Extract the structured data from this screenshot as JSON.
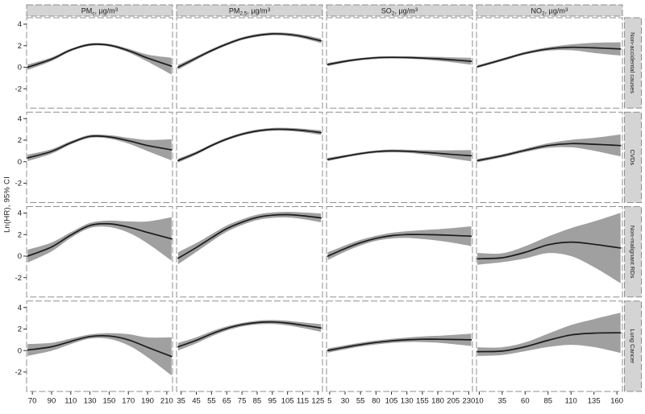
{
  "chart_data": {
    "type": "line",
    "title": "",
    "xlabel": "",
    "ylabel": "Ln(HR), 95% CI",
    "ylim": [
      -3.8,
      4.6
    ],
    "yticks": [
      -2,
      0,
      2,
      4
    ],
    "grid": false,
    "legend_position": "none",
    "colors": {
      "band": "#a0a0a0",
      "line": "#1a1a1a",
      "strip_bg": "#d4d4d4",
      "panel_border": "#8f8f8f",
      "tick_text": "#1a1a1a",
      "background": "#ffffff"
    },
    "columns": [
      {
        "header_text": "PMc, µg/m³",
        "header": {
          "pre": "PM",
          "sub": "c",
          "mid": ", µg/m",
          "sup": "3"
        },
        "xlim": [
          64,
          216
        ],
        "xticks": [
          70,
          90,
          110,
          130,
          150,
          170,
          190,
          210
        ]
      },
      {
        "header_text": "PM2.5, µg/m³",
        "header": {
          "pre": "PM",
          "sub": "2.5",
          "mid": ", µg/m",
          "sup": "3"
        },
        "xlim": [
          32,
          128
        ],
        "xticks": [
          35,
          45,
          55,
          65,
          75,
          85,
          95,
          105,
          115,
          125
        ]
      },
      {
        "header_text": "SO2, µg/m³",
        "header": {
          "pre": "SO",
          "sub": "2",
          "mid": ", µg/m",
          "sup": "3"
        },
        "xlim": [
          0,
          236
        ],
        "xticks": [
          5,
          30,
          55,
          80,
          105,
          130,
          155,
          180,
          205,
          230
        ]
      },
      {
        "header_text": "NO2, µg/m³",
        "header": {
          "pre": "NO",
          "sub": "2",
          "mid": ", µg/m",
          "sup": "3"
        },
        "xlim": [
          7,
          166
        ],
        "xticks": [
          10,
          35,
          60,
          85,
          110,
          135,
          160
        ]
      }
    ],
    "rows": [
      {
        "label": "Non-accidental causes"
      },
      {
        "label": "CVDs"
      },
      {
        "label": "Non-malignant RDs"
      },
      {
        "label": "Lung Cancer"
      }
    ],
    "panels": [
      [
        {
          "x": [
            65,
            90,
            110,
            130,
            150,
            170,
            190,
            215
          ],
          "y": [
            0.0,
            0.75,
            1.6,
            2.1,
            2.05,
            1.55,
            0.85,
            0.1
          ],
          "lo": [
            -0.25,
            0.58,
            1.48,
            1.98,
            1.93,
            1.38,
            0.52,
            -0.68
          ],
          "hi": [
            0.25,
            0.92,
            1.72,
            2.22,
            2.17,
            1.72,
            1.18,
            0.88
          ]
        },
        {
          "x": [
            33,
            45,
            55,
            65,
            75,
            85,
            95,
            105,
            115,
            127
          ],
          "y": [
            0.0,
            0.85,
            1.55,
            2.15,
            2.65,
            2.95,
            3.1,
            3.05,
            2.85,
            2.45
          ],
          "lo": [
            -0.22,
            0.69,
            1.41,
            2.02,
            2.52,
            2.82,
            2.97,
            2.91,
            2.69,
            2.24
          ],
          "hi": [
            0.22,
            1.01,
            1.69,
            2.28,
            2.78,
            3.08,
            3.23,
            3.19,
            3.01,
            2.66
          ]
        },
        {
          "x": [
            2,
            30,
            55,
            80,
            105,
            130,
            155,
            180,
            205,
            234
          ],
          "y": [
            0.25,
            0.55,
            0.75,
            0.88,
            0.92,
            0.9,
            0.85,
            0.78,
            0.68,
            0.55
          ],
          "lo": [
            0.1,
            0.43,
            0.64,
            0.77,
            0.81,
            0.79,
            0.72,
            0.6,
            0.45,
            0.23
          ],
          "hi": [
            0.4,
            0.67,
            0.86,
            0.99,
            1.03,
            1.01,
            0.98,
            0.96,
            0.91,
            0.87
          ]
        },
        {
          "x": [
            8,
            35,
            60,
            85,
            110,
            135,
            164
          ],
          "y": [
            0.05,
            0.7,
            1.3,
            1.7,
            1.85,
            1.8,
            1.7
          ],
          "lo": [
            -0.08,
            0.57,
            1.17,
            1.54,
            1.58,
            1.33,
            1.08
          ],
          "hi": [
            0.18,
            0.83,
            1.43,
            1.86,
            2.12,
            2.27,
            2.32
          ]
        }
      ],
      [
        {
          "x": [
            65,
            90,
            110,
            130,
            150,
            170,
            190,
            215
          ],
          "y": [
            0.35,
            0.95,
            1.75,
            2.35,
            2.3,
            1.95,
            1.5,
            1.1
          ],
          "lo": [
            0.05,
            0.74,
            1.6,
            2.21,
            2.14,
            1.68,
            0.98,
            0.12
          ],
          "hi": [
            0.65,
            1.16,
            1.9,
            2.49,
            2.46,
            2.22,
            2.02,
            2.08
          ]
        },
        {
          "x": [
            33,
            45,
            55,
            65,
            75,
            85,
            95,
            105,
            115,
            127
          ],
          "y": [
            0.1,
            0.8,
            1.5,
            2.1,
            2.55,
            2.85,
            3.0,
            3.0,
            2.9,
            2.7
          ],
          "lo": [
            -0.08,
            0.65,
            1.37,
            1.97,
            2.42,
            2.72,
            2.87,
            2.86,
            2.74,
            2.49
          ],
          "hi": [
            0.28,
            0.95,
            1.63,
            2.23,
            2.68,
            2.98,
            3.13,
            3.14,
            3.06,
            2.91
          ]
        },
        {
          "x": [
            2,
            30,
            55,
            80,
            105,
            130,
            155,
            180,
            205,
            234
          ],
          "y": [
            0.2,
            0.5,
            0.75,
            0.93,
            1.0,
            0.97,
            0.88,
            0.78,
            0.67,
            0.55
          ],
          "lo": [
            0.05,
            0.38,
            0.63,
            0.81,
            0.87,
            0.83,
            0.69,
            0.5,
            0.28,
            0.03
          ],
          "hi": [
            0.35,
            0.62,
            0.87,
            1.05,
            1.13,
            1.11,
            1.07,
            1.06,
            1.06,
            1.07
          ]
        },
        {
          "x": [
            8,
            35,
            60,
            85,
            110,
            135,
            164
          ],
          "y": [
            0.1,
            0.55,
            1.05,
            1.5,
            1.68,
            1.62,
            1.5
          ],
          "lo": [
            -0.05,
            0.41,
            0.89,
            1.29,
            1.33,
            1.02,
            0.48
          ],
          "hi": [
            0.25,
            0.69,
            1.21,
            1.71,
            2.03,
            2.22,
            2.52
          ]
        }
      ],
      [
        {
          "x": [
            65,
            90,
            110,
            130,
            150,
            170,
            190,
            215
          ],
          "y": [
            0.0,
            0.85,
            1.95,
            2.85,
            3.0,
            2.7,
            2.2,
            1.6
          ],
          "lo": [
            -0.6,
            0.44,
            1.69,
            2.61,
            2.7,
            2.18,
            1.18,
            -0.42
          ],
          "hi": [
            0.6,
            1.26,
            2.21,
            3.09,
            3.3,
            3.22,
            3.22,
            3.62
          ]
        },
        {
          "x": [
            33,
            45,
            55,
            65,
            75,
            85,
            95,
            105,
            115,
            127
          ],
          "y": [
            -0.2,
            0.8,
            1.7,
            2.55,
            3.15,
            3.6,
            3.8,
            3.85,
            3.75,
            3.55
          ],
          "lo": [
            -0.76,
            0.39,
            1.37,
            2.26,
            2.89,
            3.35,
            3.55,
            3.59,
            3.44,
            3.14
          ],
          "hi": [
            0.36,
            1.21,
            2.03,
            2.84,
            3.41,
            3.85,
            4.05,
            4.11,
            4.06,
            3.96
          ]
        },
        {
          "x": [
            2,
            30,
            55,
            80,
            105,
            130,
            155,
            180,
            205,
            234
          ],
          "y": [
            0.0,
            0.7,
            1.25,
            1.65,
            1.9,
            2.0,
            2.0,
            1.97,
            1.92,
            1.85
          ],
          "lo": [
            -0.36,
            0.41,
            0.99,
            1.42,
            1.64,
            1.69,
            1.59,
            1.44,
            1.23,
            0.93
          ],
          "hi": [
            0.36,
            0.99,
            1.51,
            1.88,
            2.16,
            2.31,
            2.41,
            2.5,
            2.61,
            2.77
          ]
        },
        {
          "x": [
            8,
            35,
            60,
            85,
            110,
            135,
            164
          ],
          "y": [
            -0.25,
            -0.15,
            0.35,
            1.05,
            1.3,
            1.1,
            0.75
          ],
          "lo": [
            -0.8,
            -0.56,
            -0.22,
            0.28,
            0.0,
            -1.02,
            -2.52
          ],
          "hi": [
            0.3,
            0.26,
            0.92,
            1.82,
            2.6,
            3.22,
            4.02
          ]
        }
      ],
      [
        {
          "x": [
            65,
            90,
            110,
            130,
            150,
            170,
            190,
            215
          ],
          "y": [
            0.05,
            0.35,
            0.85,
            1.3,
            1.35,
            1.0,
            0.3,
            -0.55
          ],
          "lo": [
            -0.5,
            -0.02,
            0.59,
            1.11,
            1.08,
            0.48,
            -0.62,
            -2.32
          ],
          "hi": [
            0.6,
            0.72,
            1.11,
            1.49,
            1.62,
            1.52,
            1.22,
            1.22
          ]
        },
        {
          "x": [
            33,
            45,
            55,
            65,
            75,
            85,
            95,
            105,
            115,
            127
          ],
          "y": [
            0.35,
            0.95,
            1.55,
            2.05,
            2.4,
            2.6,
            2.65,
            2.55,
            2.35,
            2.1
          ],
          "lo": [
            0.0,
            0.67,
            1.32,
            1.86,
            2.23,
            2.43,
            2.46,
            2.34,
            2.09,
            1.74
          ],
          "hi": [
            0.7,
            1.23,
            1.78,
            2.24,
            2.57,
            2.77,
            2.84,
            2.76,
            2.61,
            2.46
          ]
        },
        {
          "x": [
            2,
            30,
            55,
            80,
            105,
            130,
            155,
            180,
            205,
            234
          ],
          "y": [
            0.0,
            0.3,
            0.55,
            0.75,
            0.9,
            1.0,
            1.05,
            1.05,
            1.03,
            1.0
          ],
          "lo": [
            -0.2,
            0.11,
            0.37,
            0.57,
            0.71,
            0.79,
            0.79,
            0.73,
            0.6,
            0.43
          ],
          "hi": [
            0.2,
            0.49,
            0.73,
            0.93,
            1.09,
            1.21,
            1.31,
            1.37,
            1.46,
            1.57
          ]
        },
        {
          "x": [
            8,
            35,
            60,
            85,
            110,
            135,
            164
          ],
          "y": [
            -0.1,
            -0.05,
            0.35,
            0.95,
            1.45,
            1.62,
            1.65
          ],
          "lo": [
            -0.5,
            -0.41,
            -0.06,
            0.33,
            0.53,
            0.32,
            -0.22
          ],
          "hi": [
            0.3,
            0.31,
            0.76,
            1.57,
            2.37,
            2.92,
            3.52
          ]
        }
      ]
    ]
  }
}
